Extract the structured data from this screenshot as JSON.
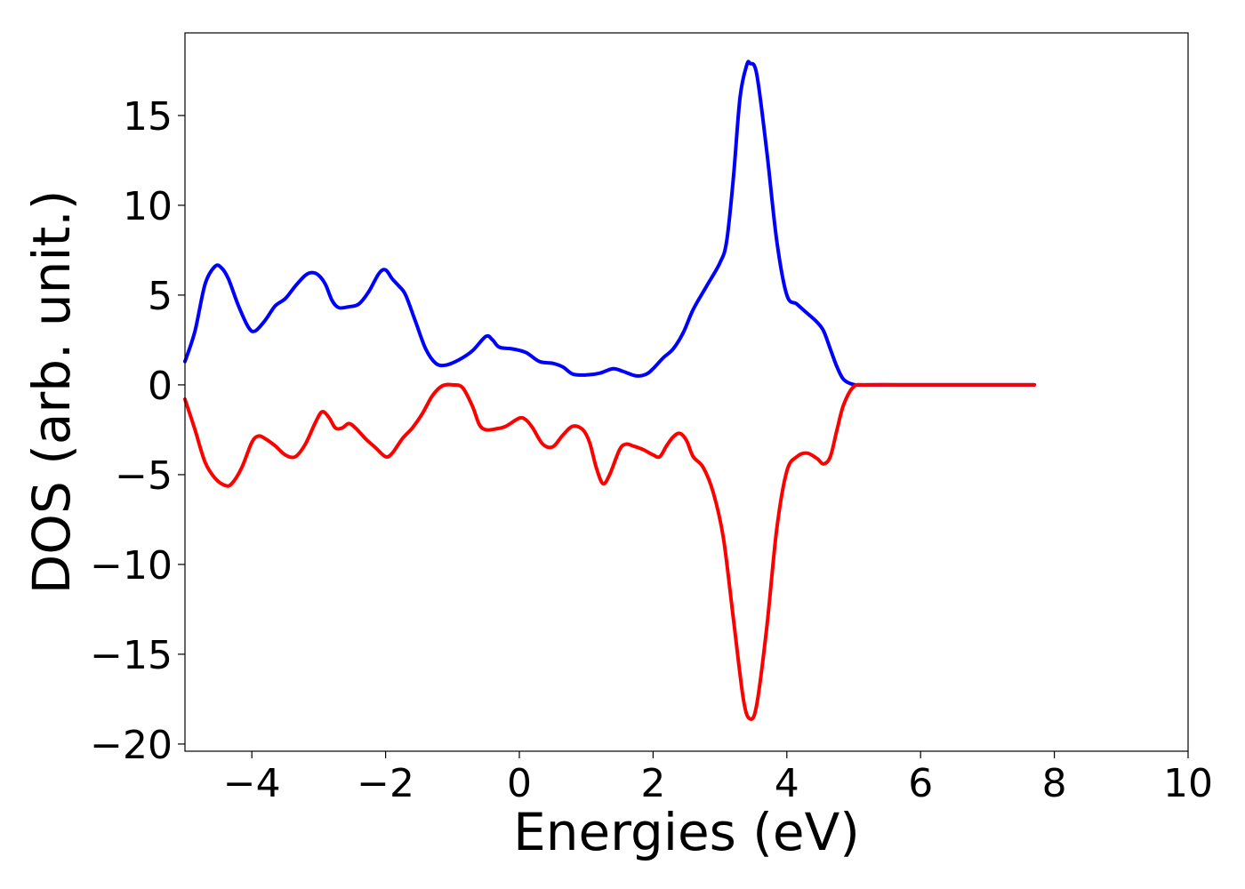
{
  "chart_data": {
    "type": "line",
    "title": "",
    "xlabel": "Energies (eV)",
    "ylabel": "DOS (arb. unit.)",
    "xlim": [
      -5,
      10
    ],
    "ylim": [
      -20.4,
      19.6
    ],
    "xticks": [
      -4,
      -2,
      0,
      2,
      4,
      6,
      8,
      10
    ],
    "xtick_labels": [
      "−4",
      "−2",
      "0",
      "2",
      "4",
      "6",
      "8",
      "10"
    ],
    "yticks": [
      -20,
      -15,
      -10,
      -5,
      0,
      5,
      10,
      15
    ],
    "ytick_labels": [
      "−20",
      "−15",
      "−10",
      "−5",
      "0",
      "5",
      "10",
      "15"
    ],
    "grid": false,
    "legend": "none",
    "series": [
      {
        "color": "#0000ff",
        "points": [
          [
            -5.0,
            1.3
          ],
          [
            -4.85,
            3.0
          ],
          [
            -4.7,
            5.6
          ],
          [
            -4.55,
            6.6
          ],
          [
            -4.45,
            6.5
          ],
          [
            -4.35,
            5.9
          ],
          [
            -4.2,
            4.4
          ],
          [
            -4.05,
            3.2
          ],
          [
            -3.95,
            3.0
          ],
          [
            -3.8,
            3.6
          ],
          [
            -3.65,
            4.4
          ],
          [
            -3.5,
            4.8
          ],
          [
            -3.35,
            5.5
          ],
          [
            -3.2,
            6.1
          ],
          [
            -3.1,
            6.25
          ],
          [
            -3.0,
            6.1
          ],
          [
            -2.9,
            5.6
          ],
          [
            -2.8,
            4.7
          ],
          [
            -2.7,
            4.3
          ],
          [
            -2.55,
            4.35
          ],
          [
            -2.4,
            4.5
          ],
          [
            -2.25,
            5.2
          ],
          [
            -2.1,
            6.2
          ],
          [
            -2.0,
            6.4
          ],
          [
            -1.9,
            5.9
          ],
          [
            -1.8,
            5.5
          ],
          [
            -1.7,
            5.0
          ],
          [
            -1.55,
            3.5
          ],
          [
            -1.4,
            2.0
          ],
          [
            -1.25,
            1.2
          ],
          [
            -1.1,
            1.1
          ],
          [
            -0.9,
            1.4
          ],
          [
            -0.7,
            1.9
          ],
          [
            -0.5,
            2.7
          ],
          [
            -0.4,
            2.5
          ],
          [
            -0.3,
            2.1
          ],
          [
            -0.1,
            2.0
          ],
          [
            0.1,
            1.8
          ],
          [
            0.3,
            1.3
          ],
          [
            0.5,
            1.2
          ],
          [
            0.65,
            1.0
          ],
          [
            0.8,
            0.6
          ],
          [
            1.0,
            0.55
          ],
          [
            1.2,
            0.65
          ],
          [
            1.4,
            0.9
          ],
          [
            1.55,
            0.75
          ],
          [
            1.75,
            0.5
          ],
          [
            1.9,
            0.6
          ],
          [
            2.0,
            0.9
          ],
          [
            2.15,
            1.5
          ],
          [
            2.3,
            2.0
          ],
          [
            2.45,
            2.9
          ],
          [
            2.6,
            4.2
          ],
          [
            2.8,
            5.5
          ],
          [
            3.0,
            6.8
          ],
          [
            3.1,
            8.0
          ],
          [
            3.2,
            11.5
          ],
          [
            3.3,
            16.0
          ],
          [
            3.4,
            17.8
          ],
          [
            3.45,
            17.9
          ],
          [
            3.55,
            17.3
          ],
          [
            3.7,
            13.0
          ],
          [
            3.85,
            8.0
          ],
          [
            4.0,
            5.0
          ],
          [
            4.15,
            4.5
          ],
          [
            4.3,
            4.0
          ],
          [
            4.45,
            3.5
          ],
          [
            4.55,
            3.0
          ],
          [
            4.65,
            2.0
          ],
          [
            4.75,
            1.0
          ],
          [
            4.85,
            0.3
          ],
          [
            5.0,
            0.02
          ],
          [
            5.2,
            0.0
          ],
          [
            6.0,
            0.0
          ],
          [
            7.0,
            0.0
          ],
          [
            7.7,
            0.0
          ]
        ]
      },
      {
        "color": "#ff0000",
        "points": [
          [
            -5.0,
            -0.8
          ],
          [
            -4.85,
            -2.5
          ],
          [
            -4.7,
            -4.3
          ],
          [
            -4.55,
            -5.2
          ],
          [
            -4.4,
            -5.6
          ],
          [
            -4.3,
            -5.5
          ],
          [
            -4.15,
            -4.6
          ],
          [
            -4.0,
            -3.2
          ],
          [
            -3.9,
            -2.85
          ],
          [
            -3.8,
            -3.0
          ],
          [
            -3.65,
            -3.4
          ],
          [
            -3.5,
            -3.9
          ],
          [
            -3.35,
            -4.0
          ],
          [
            -3.2,
            -3.3
          ],
          [
            -3.05,
            -2.1
          ],
          [
            -2.95,
            -1.5
          ],
          [
            -2.85,
            -1.8
          ],
          [
            -2.75,
            -2.4
          ],
          [
            -2.65,
            -2.4
          ],
          [
            -2.55,
            -2.15
          ],
          [
            -2.45,
            -2.4
          ],
          [
            -2.3,
            -3.0
          ],
          [
            -2.15,
            -3.5
          ],
          [
            -2.0,
            -4.0
          ],
          [
            -1.9,
            -3.8
          ],
          [
            -1.75,
            -3.0
          ],
          [
            -1.6,
            -2.4
          ],
          [
            -1.45,
            -1.6
          ],
          [
            -1.3,
            -0.6
          ],
          [
            -1.15,
            -0.05
          ],
          [
            -1.0,
            0.0
          ],
          [
            -0.85,
            -0.15
          ],
          [
            -0.7,
            -1.2
          ],
          [
            -0.6,
            -2.2
          ],
          [
            -0.5,
            -2.5
          ],
          [
            -0.35,
            -2.45
          ],
          [
            -0.2,
            -2.3
          ],
          [
            0.0,
            -1.85
          ],
          [
            0.1,
            -1.95
          ],
          [
            0.2,
            -2.4
          ],
          [
            0.35,
            -3.3
          ],
          [
            0.5,
            -3.45
          ],
          [
            0.65,
            -2.8
          ],
          [
            0.8,
            -2.3
          ],
          [
            0.95,
            -2.5
          ],
          [
            1.05,
            -3.2
          ],
          [
            1.15,
            -4.6
          ],
          [
            1.25,
            -5.5
          ],
          [
            1.35,
            -5.0
          ],
          [
            1.5,
            -3.6
          ],
          [
            1.6,
            -3.3
          ],
          [
            1.7,
            -3.4
          ],
          [
            1.85,
            -3.6
          ],
          [
            2.0,
            -3.9
          ],
          [
            2.1,
            -4.0
          ],
          [
            2.2,
            -3.4
          ],
          [
            2.3,
            -2.9
          ],
          [
            2.4,
            -2.7
          ],
          [
            2.5,
            -3.1
          ],
          [
            2.6,
            -4.0
          ],
          [
            2.75,
            -4.6
          ],
          [
            2.9,
            -6.0
          ],
          [
            3.05,
            -8.5
          ],
          [
            3.2,
            -13.0
          ],
          [
            3.35,
            -17.5
          ],
          [
            3.45,
            -18.6
          ],
          [
            3.55,
            -17.8
          ],
          [
            3.7,
            -13.5
          ],
          [
            3.85,
            -8.0
          ],
          [
            4.0,
            -4.8
          ],
          [
            4.15,
            -4.0
          ],
          [
            4.3,
            -3.8
          ],
          [
            4.45,
            -4.1
          ],
          [
            4.55,
            -4.4
          ],
          [
            4.65,
            -4.0
          ],
          [
            4.75,
            -2.5
          ],
          [
            4.85,
            -1.1
          ],
          [
            5.0,
            -0.1
          ],
          [
            5.2,
            0.0
          ],
          [
            6.0,
            0.0
          ],
          [
            7.0,
            0.0
          ],
          [
            7.7,
            0.0
          ]
        ]
      }
    ]
  }
}
